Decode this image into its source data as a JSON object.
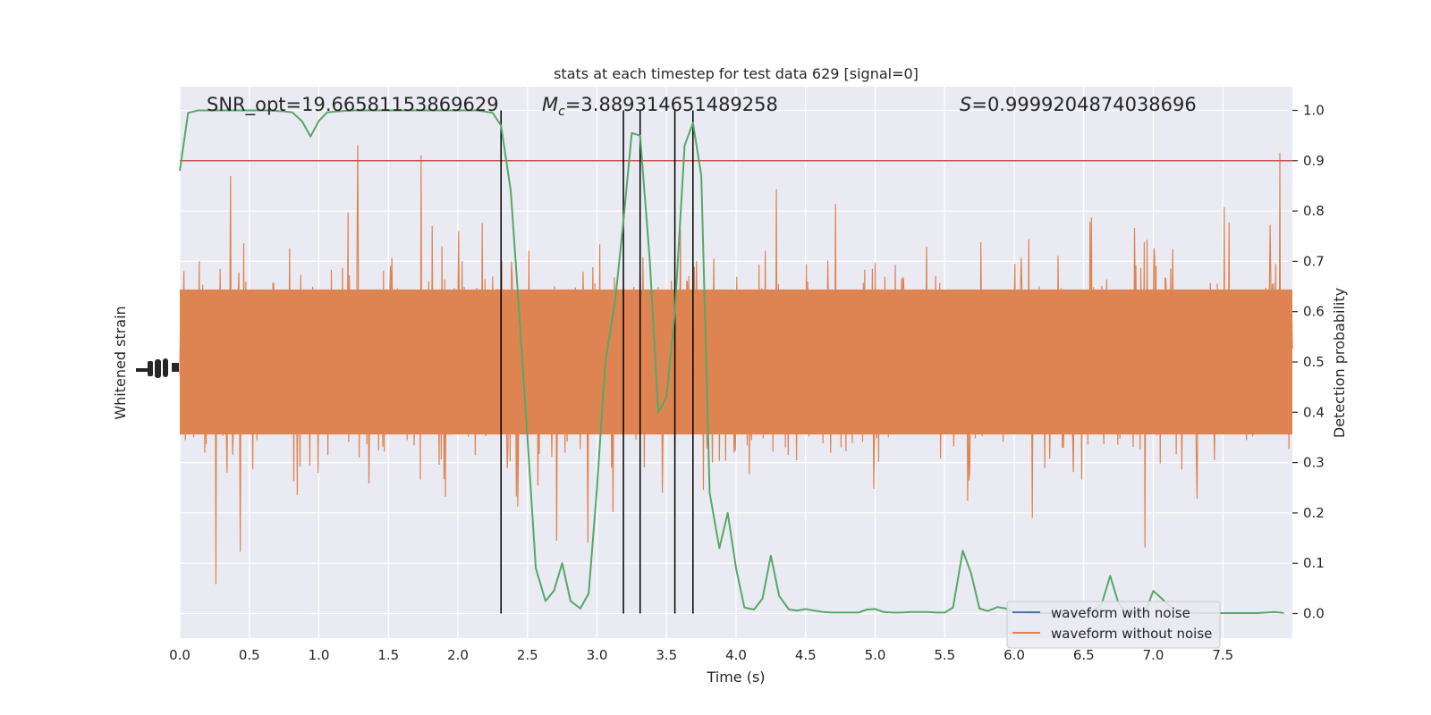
{
  "chart_data": {
    "type": "line",
    "title": "stats at each timestep for test data 629 [signal=0]",
    "xlabel": "Time (s)",
    "ylabel_left": "Whitened strain",
    "ylabel_right": "Detection probability",
    "xlim": [
      0.0,
      8.0
    ],
    "ylim_right": [
      -0.05,
      1.05
    ],
    "xticks": [
      "0.0",
      "0.5",
      "1.0",
      "1.5",
      "2.0",
      "2.5",
      "3.0",
      "3.5",
      "4.0",
      "4.5",
      "5.0",
      "5.5",
      "6.0",
      "6.5",
      "7.0",
      "7.5"
    ],
    "yticks_right": [
      "0.0",
      "0.1",
      "0.2",
      "0.3",
      "0.4",
      "0.5",
      "0.6",
      "0.7",
      "0.8",
      "0.9",
      "1.0"
    ],
    "grid": true,
    "legend_position": "lower-right",
    "legend": [
      {
        "label": "waveform with noise",
        "color": "#4c72b0"
      },
      {
        "label": "waveform without noise",
        "color": "#dd8452"
      }
    ],
    "annotations": {
      "snr": "SNR_opt=19.66581153869629",
      "mc_symbol": "M",
      "mc_sub": "c",
      "mc_value": "=3.889314651489258",
      "s_symbol": "S",
      "s_value": "=0.9999204874038696"
    },
    "threshold": {
      "y": 0.9,
      "color": "#c44e52"
    },
    "vertical_lines_x": [
      2.31,
      3.19,
      3.31,
      3.56,
      3.69
    ],
    "strain_noise_band": {
      "center": 0.5,
      "typical_half_width": 0.16,
      "max_half_width": 0.48,
      "color": "#dd8452"
    },
    "probability_series": {
      "name": "Detection probability",
      "color": "#55a868",
      "x": [
        0.0,
        0.06,
        0.13,
        0.19,
        0.25,
        0.31,
        0.38,
        0.44,
        0.5,
        0.56,
        0.63,
        0.69,
        0.75,
        0.81,
        0.88,
        0.94,
        1.0,
        1.06,
        1.13,
        1.19,
        1.25,
        1.31,
        1.38,
        1.44,
        1.5,
        1.56,
        1.63,
        1.69,
        1.75,
        1.81,
        1.88,
        1.94,
        2.0,
        2.06,
        2.13,
        2.19,
        2.25,
        2.31,
        2.38,
        2.44,
        2.5,
        2.56,
        2.63,
        2.69,
        2.75,
        2.81,
        2.88,
        2.94,
        3.0,
        3.06,
        3.13,
        3.19,
        3.25,
        3.31,
        3.38,
        3.44,
        3.5,
        3.56,
        3.63,
        3.69,
        3.75,
        3.81,
        3.88,
        3.94,
        4.0,
        4.06,
        4.13,
        4.19,
        4.25,
        4.31,
        4.38,
        4.44,
        4.5,
        4.56,
        4.63,
        4.69,
        4.75,
        4.81,
        4.88,
        4.94,
        5.0,
        5.06,
        5.13,
        5.19,
        5.25,
        5.31,
        5.38,
        5.44,
        5.5,
        5.56,
        5.63,
        5.69,
        5.75,
        5.81,
        5.88,
        5.94,
        6.0,
        6.06,
        6.13,
        6.19,
        6.25,
        6.31,
        6.38,
        6.44,
        6.5,
        6.56,
        6.63,
        6.69,
        6.75,
        6.81,
        6.88,
        6.94,
        7.0,
        7.06,
        7.13,
        7.19,
        7.25,
        7.31,
        7.38,
        7.44,
        7.5,
        7.56,
        7.63,
        7.69,
        7.75,
        7.81,
        7.88,
        7.94
      ],
      "y": [
        0.88,
        0.995,
        1.0,
        1.0,
        1.0,
        1.0,
        1.0,
        1.0,
        1.0,
        1.0,
        1.0,
        0.999,
        0.998,
        0.996,
        0.978,
        0.948,
        0.979,
        0.996,
        0.998,
        0.999,
        1.0,
        1.0,
        1.0,
        1.0,
        1.0,
        1.0,
        1.0,
        1.0,
        1.0,
        1.0,
        1.0,
        1.0,
        1.0,
        1.0,
        1.0,
        0.998,
        0.995,
        0.97,
        0.84,
        0.6,
        0.35,
        0.09,
        0.025,
        0.045,
        0.1,
        0.025,
        0.01,
        0.04,
        0.25,
        0.5,
        0.62,
        0.78,
        0.955,
        0.95,
        0.7,
        0.4,
        0.43,
        0.6,
        0.93,
        0.975,
        0.87,
        0.24,
        0.13,
        0.2,
        0.09,
        0.012,
        0.008,
        0.03,
        0.115,
        0.035,
        0.008,
        0.006,
        0.009,
        0.006,
        0.003,
        0.002,
        0.002,
        0.002,
        0.002,
        0.008,
        0.009,
        0.003,
        0.002,
        0.002,
        0.003,
        0.003,
        0.003,
        0.002,
        0.002,
        0.012,
        0.125,
        0.08,
        0.01,
        0.005,
        0.013,
        0.01,
        0.002,
        0.002,
        0.001,
        0.001,
        0.001,
        0.001,
        0.001,
        0.001,
        0.001,
        0.001,
        0.02,
        0.075,
        0.02,
        0.001,
        0.001,
        0.001,
        0.045,
        0.03,
        0.012,
        0.004,
        0.002,
        0.001,
        0.001,
        0.001,
        0.001,
        0.001,
        0.001,
        0.001,
        0.001,
        0.002,
        0.003,
        0.001
      ]
    }
  }
}
